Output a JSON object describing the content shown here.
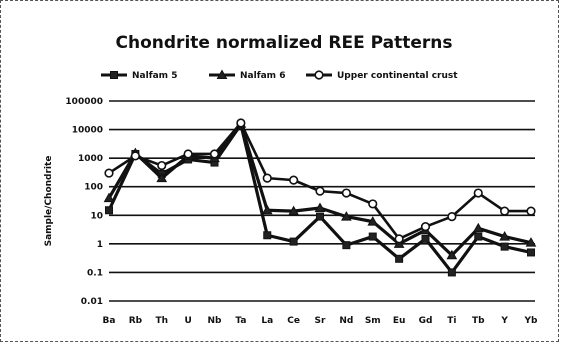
{
  "chart_data": {
    "type": "line",
    "title": "Chondrite normalized REE Patterns",
    "ylabel": "Sample/Chondrite",
    "xlabel": "",
    "yscale": "log",
    "ylim": [
      0.01,
      100000
    ],
    "yticks": [
      "100000",
      "10000",
      "1000",
      "100",
      "10",
      "1",
      "0.1",
      "0.01"
    ],
    "grid": true,
    "legend_position": "top",
    "categories": [
      "Ba",
      "Rb",
      "Th",
      "U",
      "Nb",
      "Ta",
      "La",
      "Ce",
      "Sr",
      "Nd",
      "Sm",
      "Eu",
      "Gd",
      "Ti",
      "Tb",
      "Y",
      "Yb"
    ],
    "series": [
      {
        "name": "Nalfam 5",
        "marker": "square",
        "values": [
          15,
          1400,
          280,
          900,
          700,
          15000,
          2,
          1.2,
          9,
          0.9,
          1.8,
          0.3,
          1.5,
          0.1,
          1.8,
          0.8,
          0.5
        ]
      },
      {
        "name": "Nalfam 6",
        "marker": "triangle",
        "values": [
          40,
          1500,
          200,
          1200,
          1000,
          16000,
          15,
          14,
          18,
          9,
          6,
          1,
          3,
          0.4,
          3.5,
          1.8,
          1.1
        ]
      },
      {
        "name": "Upper continental crust",
        "marker": "circle",
        "values": [
          300,
          1200,
          550,
          1400,
          1400,
          17000,
          200,
          170,
          70,
          60,
          25,
          1.5,
          4,
          9,
          60,
          14,
          14
        ]
      }
    ]
  }
}
